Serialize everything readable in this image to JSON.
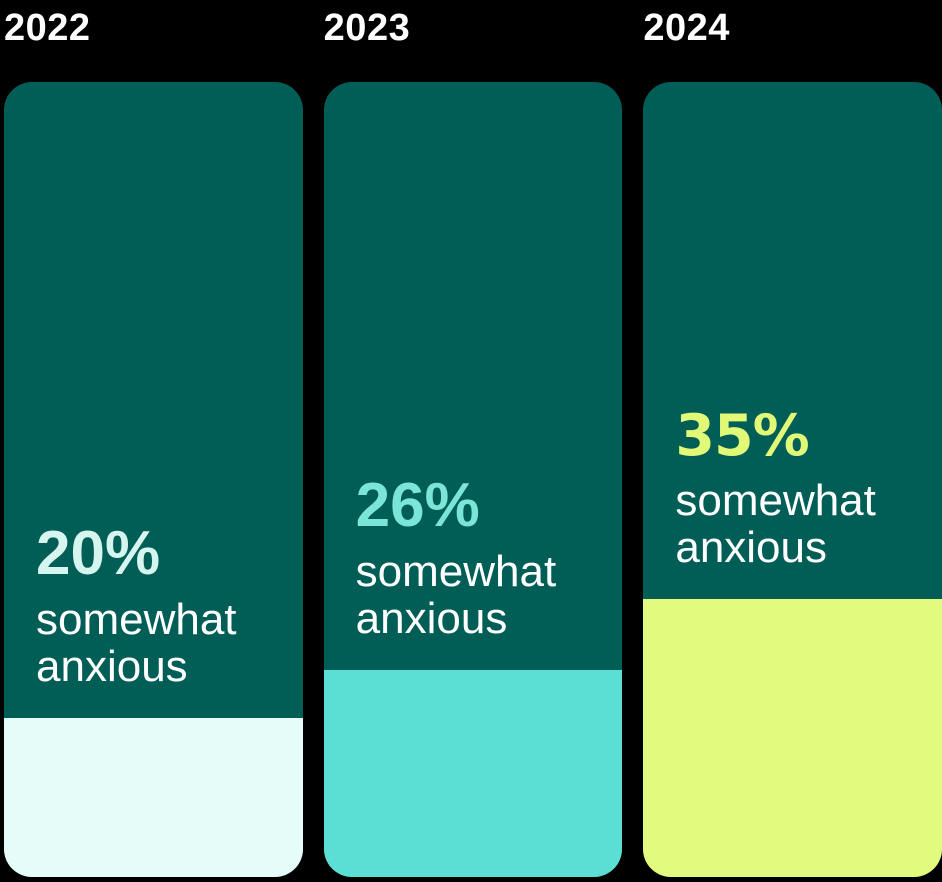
{
  "background": "#000000",
  "bar_track_color": "#015E57",
  "caption_text_color": "#FFFFFF",
  "chart_data": {
    "type": "bar",
    "title": "",
    "xlabel": "",
    "ylabel": "",
    "ylim": [
      0,
      100
    ],
    "unit": "%",
    "categories": [
      "2022",
      "2023",
      "2024"
    ],
    "values": [
      20,
      26,
      35
    ],
    "legend": null,
    "grid": false,
    "bars": [
      {
        "year": "2022",
        "pct": 20,
        "pct_label": "20%",
        "label": "somewhat anxious",
        "fill_color": "#E5FCF8",
        "pct_text_color": "#D7F5EF"
      },
      {
        "year": "2023",
        "pct": 26,
        "pct_label": "26%",
        "label": "somewhat anxious",
        "fill_color": "#5BDED3",
        "pct_text_color": "#7CE5DA"
      },
      {
        "year": "2024",
        "pct": 35,
        "pct_label": "35%",
        "label": "somewhat anxious",
        "fill_color": "#E2FA7E",
        "pct_text_color": "#E2F977"
      }
    ]
  }
}
